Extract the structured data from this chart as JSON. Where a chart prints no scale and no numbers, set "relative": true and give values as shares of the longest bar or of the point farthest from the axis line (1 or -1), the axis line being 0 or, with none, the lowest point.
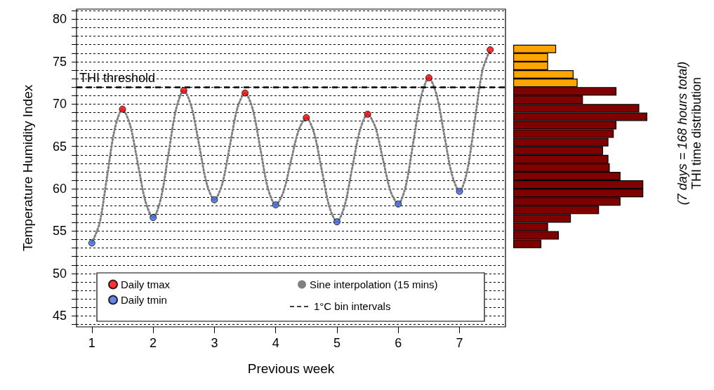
{
  "chart_data": [
    {
      "type": "scatter",
      "xlabel": "Previous week",
      "ylabel": "Temperature Humidity Index",
      "xlim": [
        0.75,
        7.75
      ],
      "xticks": [
        1,
        2,
        3,
        4,
        5,
        6,
        7
      ],
      "ylim": [
        43.7,
        81.2
      ],
      "yticks": [
        {
          "value": 44,
          "label": null
        },
        45,
        {
          "value": 46,
          "label": null
        },
        {
          "value": 47,
          "label": null
        },
        {
          "value": 48,
          "label": null
        },
        {
          "value": 49,
          "label": null
        },
        50,
        {
          "value": 51,
          "label": null
        },
        {
          "value": 52,
          "label": null
        },
        {
          "value": 53,
          "label": null
        },
        {
          "value": 54,
          "label": null
        },
        55,
        {
          "value": 56,
          "label": null
        },
        {
          "value": 57,
          "label": null
        },
        {
          "value": 58,
          "label": null
        },
        {
          "value": 59,
          "label": null
        },
        60,
        {
          "value": 61,
          "label": null
        },
        {
          "value": 62,
          "label": null
        },
        {
          "value": 63,
          "label": null
        },
        {
          "value": 64,
          "label": null
        },
        65,
        {
          "value": 66,
          "label": null
        },
        {
          "value": 67,
          "label": null
        },
        {
          "value": 68,
          "label": null
        },
        {
          "value": 69,
          "label": null
        },
        70,
        {
          "value": 71,
          "label": null
        },
        {
          "value": 72,
          "label": null
        },
        {
          "value": 73,
          "label": null
        },
        {
          "value": 74,
          "label": null
        },
        75,
        {
          "value": 76,
          "label": null
        },
        {
          "value": 77,
          "label": null
        },
        {
          "value": 78,
          "label": null
        },
        {
          "value": 79,
          "label": null
        },
        80,
        {
          "value": 81,
          "label": null
        }
      ],
      "grid": "y",
      "legend": "bottom left",
      "marker": "circle",
      "series": [
        {
          "name": "Daily tmax",
          "color": "#ff0000",
          "x": [
            1.5,
            2.5,
            3.5,
            4.5,
            5.5,
            6.5,
            7.5
          ],
          "values": [
            69.4,
            71.6,
            71.3,
            68.4,
            68.8,
            73.1,
            76.4
          ]
        },
        {
          "name": "Daily tmin",
          "color": "#4169e1",
          "x": [
            1,
            2,
            3,
            4,
            5,
            6,
            7
          ],
          "values": [
            53.6,
            56.6,
            58.7,
            58.1,
            56.1,
            58.2,
            59.7
          ]
        },
        {
          "name": "Sine interpolation (15 mins)",
          "type": "line",
          "color": "#808080",
          "marker": "none",
          "line_style": "dotted",
          "x": [
            1,
            1.125,
            1.25,
            1.375,
            1.5,
            1.625,
            1.75,
            1.875,
            2,
            2.125,
            2.25,
            2.375,
            2.5,
            2.625,
            2.75,
            2.875,
            3,
            3.125,
            3.25,
            3.375,
            3.5,
            3.625,
            3.75,
            3.875,
            4,
            4.125,
            4.25,
            4.375,
            4.5,
            4.625,
            4.75,
            4.875,
            5,
            5.125,
            5.25,
            5.375,
            5.5,
            5.625,
            5.75,
            5.875,
            6,
            6.125,
            6.25,
            6.375,
            6.5,
            6.625,
            6.75,
            6.875,
            7,
            7.125,
            7.25,
            7.375,
            7.5
          ],
          "values": [
            53.6,
            55.9,
            61.5,
            67.1,
            69.4,
            67.5,
            63.0,
            58.5,
            56.6,
            58.8,
            64.1,
            69.4,
            71.6,
            69.7,
            65.2,
            60.6,
            58.7,
            60.5,
            65.0,
            69.5,
            71.3,
            69.4,
            64.7,
            60.0,
            58.1,
            59.6,
            63.3,
            66.9,
            68.4,
            66.6,
            62.3,
            57.9,
            56.1,
            58.0,
            62.5,
            66.9,
            68.8,
            67.3,
            63.5,
            59.7,
            58.2,
            60.4,
            65.7,
            70.9,
            73.1,
            71.1,
            66.4,
            61.7,
            59.7,
            62.1,
            68.1,
            74.0,
            76.4
          ]
        }
      ],
      "ref_lines": [
        {
          "axis": "y",
          "value": 72,
          "label": "THI threshold",
          "color": "#000000",
          "line_style": "dashed"
        }
      ],
      "annotations": [
        "1°C bin intervals"
      ]
    },
    {
      "type": "bar",
      "orientation": "horizontal",
      "relative": true,
      "categories": [
        null,
        null,
        null,
        null,
        null,
        null,
        null,
        null,
        null,
        null,
        null,
        null,
        null,
        null,
        null,
        null,
        null,
        null,
        null,
        null,
        null,
        null,
        null,
        null
      ],
      "values": [
        0.32,
        0.26,
        0.26,
        0.45,
        0.48,
        0.77,
        0.52,
        0.94,
        1,
        0.77,
        0.75,
        0.71,
        0.67,
        0.71,
        0.72,
        0.8,
        0.97,
        0.97,
        0.8,
        0.64,
        0.43,
        0.26,
        0.34,
        0.21
      ],
      "colors": [
        "#ffa500",
        "#ffa500",
        "#ffa500",
        "#ffa500",
        "#ffa500",
        "#800000",
        "#800000",
        "#800000",
        "#800000",
        "#800000",
        "#800000",
        "#800000",
        "#800000",
        "#800000",
        "#800000",
        "#800000",
        "#800000",
        "#800000",
        "#800000",
        "#800000",
        "#800000",
        "#800000",
        "#800000",
        "#800000"
      ],
      "ylabel": "THI time distribution",
      "annotations": [
        "(7 days = 168 hours total)"
      ]
    }
  ]
}
